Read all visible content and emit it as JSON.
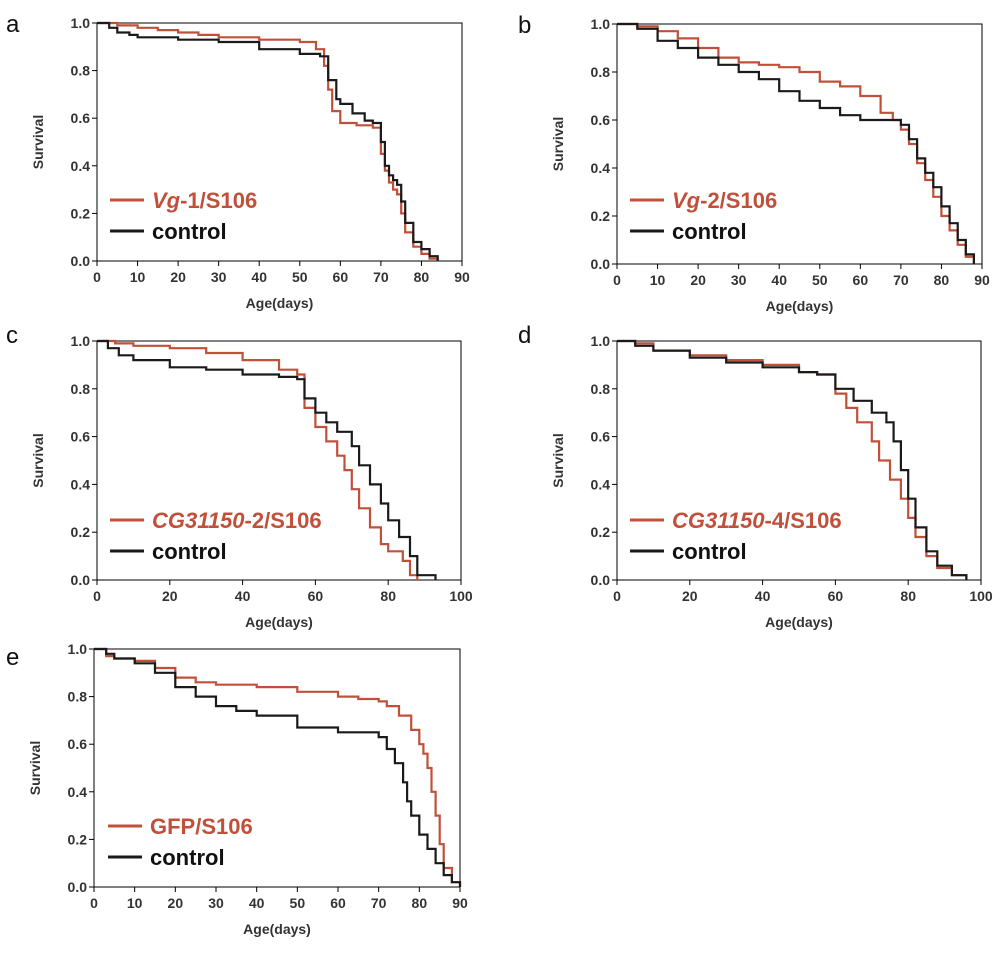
{
  "colors": {
    "treatment": "#c0503a",
    "control": "#1a1a1a",
    "frame": "#000000"
  },
  "chart_data": [
    {
      "type": "line",
      "panel": "a",
      "xlabel": "Age(days)",
      "ylabel": "Survival",
      "xlim": [
        0,
        90
      ],
      "ylim": [
        0,
        1
      ],
      "xticks": [
        0,
        10,
        20,
        30,
        40,
        50,
        60,
        70,
        80,
        90
      ],
      "yticks": [
        "0.0",
        "0.2",
        "0.4",
        "0.6",
        "0.8",
        "1.0"
      ],
      "legend": {
        "treatment_prefix": "Vg",
        "treatment_suffix": "-1/S106",
        "control": "control"
      },
      "series": [
        {
          "name": "Vg-1/S106",
          "role": "treatment",
          "x": [
            0,
            5,
            10,
            15,
            20,
            25,
            30,
            40,
            50,
            54,
            56,
            57,
            58,
            60,
            64,
            68,
            70,
            71,
            72,
            73,
            74,
            75,
            76,
            78,
            80,
            82,
            84
          ],
          "y": [
            1.0,
            0.99,
            0.98,
            0.97,
            0.96,
            0.95,
            0.94,
            0.93,
            0.92,
            0.89,
            0.82,
            0.72,
            0.63,
            0.58,
            0.57,
            0.56,
            0.45,
            0.38,
            0.33,
            0.3,
            0.28,
            0.2,
            0.12,
            0.06,
            0.03,
            0.01,
            0.0
          ]
        },
        {
          "name": "control",
          "role": "control",
          "x": [
            0,
            3,
            5,
            8,
            10,
            20,
            30,
            40,
            50,
            55,
            57,
            59,
            60,
            63,
            66,
            68,
            70,
            71,
            72,
            73,
            74,
            75,
            76,
            78,
            80,
            82,
            84
          ],
          "y": [
            1.0,
            0.98,
            0.96,
            0.95,
            0.94,
            0.93,
            0.92,
            0.89,
            0.87,
            0.86,
            0.76,
            0.68,
            0.66,
            0.62,
            0.59,
            0.58,
            0.5,
            0.4,
            0.36,
            0.34,
            0.32,
            0.25,
            0.16,
            0.08,
            0.05,
            0.02,
            0.0
          ]
        }
      ]
    },
    {
      "type": "line",
      "panel": "b",
      "xlabel": "Age(days)",
      "ylabel": "Survival",
      "xlim": [
        0,
        90
      ],
      "ylim": [
        0,
        1
      ],
      "xticks": [
        0,
        10,
        20,
        30,
        40,
        50,
        60,
        70,
        80,
        90
      ],
      "yticks": [
        "0.0",
        "0.2",
        "0.4",
        "0.6",
        "0.8",
        "1.0"
      ],
      "legend": {
        "treatment_prefix": "Vg",
        "treatment_suffix": "-2/S106",
        "control": "control"
      },
      "series": [
        {
          "name": "Vg-2/S106",
          "role": "treatment",
          "x": [
            0,
            5,
            10,
            15,
            20,
            25,
            30,
            35,
            40,
            45,
            50,
            55,
            60,
            65,
            68,
            70,
            72,
            74,
            76,
            78,
            80,
            82,
            84,
            86,
            88
          ],
          "y": [
            1.0,
            0.99,
            0.97,
            0.94,
            0.9,
            0.86,
            0.84,
            0.83,
            0.82,
            0.8,
            0.76,
            0.74,
            0.7,
            0.63,
            0.6,
            0.56,
            0.5,
            0.42,
            0.35,
            0.28,
            0.2,
            0.14,
            0.08,
            0.03,
            0.0
          ]
        },
        {
          "name": "control",
          "role": "control",
          "x": [
            0,
            5,
            10,
            15,
            20,
            25,
            30,
            35,
            40,
            45,
            50,
            55,
            60,
            65,
            70,
            72,
            74,
            76,
            78,
            80,
            82,
            84,
            86,
            88
          ],
          "y": [
            1.0,
            0.98,
            0.93,
            0.9,
            0.86,
            0.83,
            0.8,
            0.77,
            0.72,
            0.68,
            0.65,
            0.62,
            0.6,
            0.6,
            0.58,
            0.52,
            0.44,
            0.38,
            0.32,
            0.24,
            0.17,
            0.1,
            0.04,
            0.0
          ]
        }
      ]
    },
    {
      "type": "line",
      "panel": "c",
      "xlabel": "Age(days)",
      "ylabel": "Survival",
      "xlim": [
        0,
        100
      ],
      "ylim": [
        0,
        1
      ],
      "xticks": [
        0,
        20,
        40,
        60,
        80,
        100
      ],
      "yticks": [
        "0.0",
        "0.2",
        "0.4",
        "0.6",
        "0.8",
        "1.0"
      ],
      "legend": {
        "treatment_prefix": "CG31150",
        "treatment_suffix": "-2/S106",
        "control": "control"
      },
      "series": [
        {
          "name": "CG31150-2/S106",
          "role": "treatment",
          "x": [
            0,
            5,
            10,
            20,
            30,
            40,
            50,
            55,
            57,
            60,
            63,
            66,
            68,
            70,
            72,
            75,
            78,
            80,
            84,
            86,
            88
          ],
          "y": [
            1.0,
            0.99,
            0.98,
            0.97,
            0.95,
            0.92,
            0.88,
            0.86,
            0.72,
            0.64,
            0.58,
            0.52,
            0.46,
            0.38,
            0.3,
            0.22,
            0.15,
            0.12,
            0.08,
            0.02,
            0.0
          ]
        },
        {
          "name": "control",
          "role": "control",
          "x": [
            0,
            3,
            6,
            10,
            20,
            30,
            40,
            50,
            55,
            57,
            60,
            63,
            66,
            70,
            72,
            75,
            78,
            80,
            83,
            86,
            88,
            93
          ],
          "y": [
            1.0,
            0.97,
            0.94,
            0.92,
            0.89,
            0.88,
            0.86,
            0.85,
            0.84,
            0.76,
            0.7,
            0.66,
            0.62,
            0.56,
            0.48,
            0.4,
            0.32,
            0.25,
            0.18,
            0.1,
            0.02,
            0.0
          ]
        }
      ]
    },
    {
      "type": "line",
      "panel": "d",
      "xlabel": "Age(days)",
      "ylabel": "Survival",
      "xlim": [
        0,
        100
      ],
      "ylim": [
        0,
        1
      ],
      "xticks": [
        0,
        20,
        40,
        60,
        80,
        100
      ],
      "yticks": [
        "0.0",
        "0.2",
        "0.4",
        "0.6",
        "0.8",
        "1.0"
      ],
      "legend": {
        "treatment_prefix": "CG31150",
        "treatment_suffix": "-4/S106",
        "control": "control"
      },
      "series": [
        {
          "name": "CG31150-4/S106",
          "role": "treatment",
          "x": [
            0,
            5,
            10,
            20,
            30,
            40,
            50,
            55,
            60,
            63,
            66,
            70,
            72,
            75,
            78,
            80,
            82,
            85,
            88,
            92,
            96
          ],
          "y": [
            1.0,
            0.99,
            0.96,
            0.94,
            0.92,
            0.9,
            0.87,
            0.86,
            0.78,
            0.72,
            0.66,
            0.58,
            0.5,
            0.42,
            0.34,
            0.26,
            0.18,
            0.1,
            0.05,
            0.02,
            0.0
          ]
        },
        {
          "name": "control",
          "role": "control",
          "x": [
            0,
            5,
            10,
            20,
            30,
            40,
            50,
            55,
            60,
            65,
            70,
            74,
            76,
            78,
            80,
            82,
            85,
            88,
            92,
            96
          ],
          "y": [
            1.0,
            0.98,
            0.96,
            0.93,
            0.91,
            0.89,
            0.87,
            0.86,
            0.8,
            0.75,
            0.7,
            0.66,
            0.58,
            0.46,
            0.34,
            0.22,
            0.12,
            0.06,
            0.02,
            0.0
          ]
        }
      ]
    },
    {
      "type": "line",
      "panel": "e",
      "xlabel": "Age(days)",
      "ylabel": "Survival",
      "xlim": [
        0,
        90
      ],
      "ylim": [
        0,
        1
      ],
      "xticks": [
        0,
        10,
        20,
        30,
        40,
        50,
        60,
        70,
        80,
        90
      ],
      "yticks": [
        "0.0",
        "0.2",
        "0.4",
        "0.6",
        "0.8",
        "1.0"
      ],
      "legend": {
        "treatment_prefix": "",
        "treatment_suffix": "GFP/S106",
        "control": "control"
      },
      "series": [
        {
          "name": "GFP/S106",
          "role": "treatment",
          "x": [
            0,
            3,
            5,
            10,
            15,
            20,
            25,
            30,
            40,
            50,
            60,
            65,
            70,
            72,
            75,
            78,
            80,
            81,
            82,
            83,
            84,
            85,
            86,
            88,
            90
          ],
          "y": [
            1.0,
            0.97,
            0.96,
            0.95,
            0.92,
            0.88,
            0.86,
            0.85,
            0.84,
            0.82,
            0.8,
            0.79,
            0.78,
            0.76,
            0.72,
            0.66,
            0.6,
            0.56,
            0.5,
            0.4,
            0.3,
            0.18,
            0.08,
            0.02,
            0.0
          ]
        },
        {
          "name": "control",
          "role": "control",
          "x": [
            0,
            3,
            5,
            10,
            15,
            20,
            25,
            30,
            35,
            40,
            50,
            60,
            65,
            70,
            72,
            74,
            76,
            77,
            78,
            80,
            82,
            84,
            86,
            88,
            90
          ],
          "y": [
            1.0,
            0.98,
            0.96,
            0.94,
            0.9,
            0.84,
            0.8,
            0.76,
            0.74,
            0.72,
            0.67,
            0.65,
            0.65,
            0.63,
            0.58,
            0.52,
            0.44,
            0.36,
            0.3,
            0.22,
            0.16,
            0.1,
            0.05,
            0.02,
            0.0
          ]
        }
      ]
    }
  ]
}
